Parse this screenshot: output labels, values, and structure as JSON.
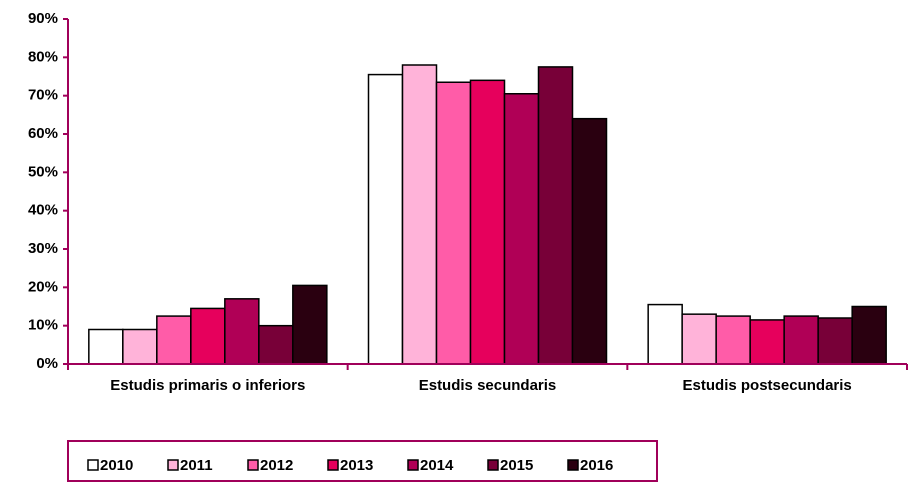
{
  "chart_data": {
    "type": "bar",
    "categories": [
      "Estudis primaris o inferiors",
      "Estudis secundaris",
      "Estudis postsecundaris"
    ],
    "series": [
      {
        "name": "2010",
        "color": "#ffffff",
        "values": [
          9,
          75.5,
          15.5
        ]
      },
      {
        "name": "2011",
        "color": "#ffb3d9",
        "values": [
          9,
          78,
          13
        ]
      },
      {
        "name": "2012",
        "color": "#ff5ca8",
        "values": [
          12.5,
          73.5,
          12.5
        ]
      },
      {
        "name": "2013",
        "color": "#e6005c",
        "values": [
          14.5,
          74,
          11.5
        ]
      },
      {
        "name": "2014",
        "color": "#b00056",
        "values": [
          17,
          70.5,
          12.5
        ]
      },
      {
        "name": "2015",
        "color": "#780038",
        "values": [
          10,
          77.5,
          12
        ]
      },
      {
        "name": "2016",
        "color": "#2a0010",
        "values": [
          20.5,
          64,
          15
        ]
      }
    ],
    "ylim": [
      0,
      90
    ],
    "yticks": [
      {
        "value": 0,
        "label": "0%"
      },
      {
        "value": 10,
        "label": "10%"
      },
      {
        "value": 20,
        "label": "20%"
      },
      {
        "value": 30,
        "label": "30%"
      },
      {
        "value": 40,
        "label": "40%"
      },
      {
        "value": 50,
        "label": "50%"
      },
      {
        "value": 60,
        "label": "60%"
      },
      {
        "value": 70,
        "label": "70%"
      },
      {
        "value": 80,
        "label": "80%"
      },
      {
        "value": 90,
        "label": "90%"
      }
    ],
    "grid": false,
    "legend": "bottom"
  }
}
